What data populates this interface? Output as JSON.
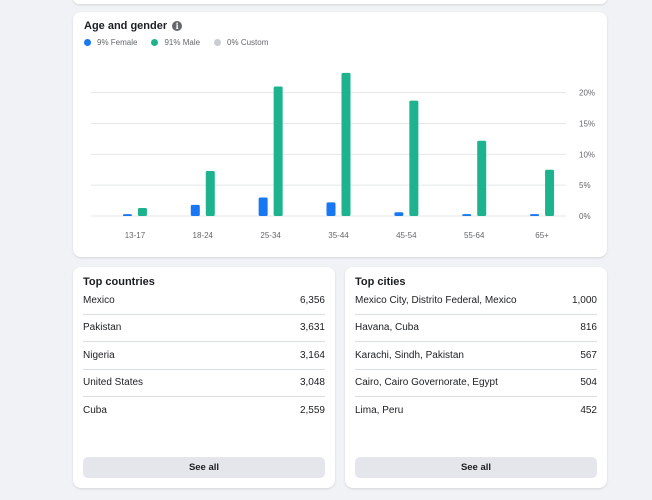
{
  "age_gender": {
    "title": "Age and gender",
    "info_icon": "info-icon",
    "legend": [
      {
        "label": "9% Female",
        "color": "#1877f2"
      },
      {
        "label": "91% Male",
        "color": "#1db38e"
      },
      {
        "label": "0% Custom",
        "color": "#c9ccd1"
      }
    ]
  },
  "chart_data": {
    "type": "bar",
    "categories": [
      "13-17",
      "18-24",
      "25-34",
      "35-44",
      "45-54",
      "55-64",
      "65+"
    ],
    "series": [
      {
        "name": "Female",
        "color": "#1877f2",
        "values": [
          0.3,
          1.8,
          3.0,
          2.2,
          0.6,
          0.3,
          0.3
        ]
      },
      {
        "name": "Male",
        "color": "#1db38e",
        "values": [
          1.3,
          7.3,
          21.0,
          23.2,
          18.7,
          12.2,
          7.5
        ]
      }
    ],
    "yticks": [
      "0%",
      "5%",
      "10%",
      "15%",
      "20%"
    ],
    "ytick_values": [
      0,
      5,
      10,
      15,
      20
    ],
    "ylim": [
      0,
      24
    ],
    "grid": true,
    "xlabel": "",
    "ylabel": ""
  },
  "top_countries": {
    "title": "Top countries",
    "rows": [
      {
        "name": "Mexico",
        "value": "6,356"
      },
      {
        "name": "Pakistan",
        "value": "3,631"
      },
      {
        "name": "Nigeria",
        "value": "3,164"
      },
      {
        "name": "United States",
        "value": "3,048"
      },
      {
        "name": "Cuba",
        "value": "2,559"
      }
    ],
    "see_all": "See all"
  },
  "top_cities": {
    "title": "Top cities",
    "rows": [
      {
        "name": "Mexico City, Distrito Federal, Mexico",
        "value": "1,000"
      },
      {
        "name": "Havana, Cuba",
        "value": "816"
      },
      {
        "name": "Karachi, Sindh, Pakistan",
        "value": "567"
      },
      {
        "name": "Cairo, Cairo Governorate, Egypt",
        "value": "504"
      },
      {
        "name": "Lima, Peru",
        "value": "452"
      }
    ],
    "see_all": "See all"
  }
}
